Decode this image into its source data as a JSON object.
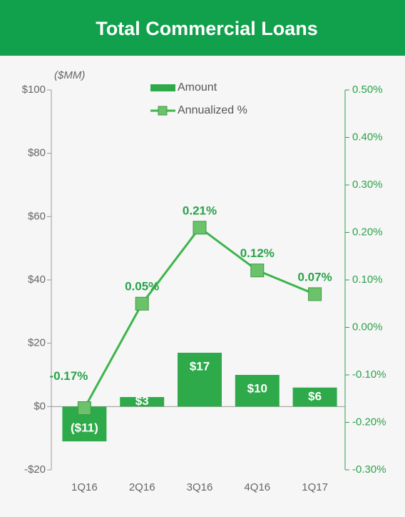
{
  "chart_data": {
    "type": "bar",
    "title": "Total Commercial Loans",
    "y_label": "($MM)",
    "categories": [
      "1Q16",
      "2Q16",
      "3Q16",
      "4Q16",
      "1Q17"
    ],
    "series": [
      {
        "name": "Amount",
        "type": "bar",
        "color": "#2eaa4a",
        "values": [
          -11,
          3,
          17,
          10,
          6
        ],
        "value_labels": [
          "($11)",
          "$3",
          "$17",
          "$10",
          "$6"
        ]
      },
      {
        "name": "Annualized %",
        "type": "line",
        "axis": "y2",
        "color": "#3cb54a",
        "values": [
          -0.17,
          0.05,
          0.21,
          0.12,
          0.07
        ],
        "value_labels": [
          "-0.17%",
          "0.05%",
          "0.21%",
          "0.12%",
          "0.07%"
        ]
      }
    ],
    "ylim": [
      -20,
      100
    ],
    "yticks": [
      {
        "value": -20,
        "label": "-$20"
      },
      {
        "value": 0,
        "label": "$0"
      },
      {
        "value": 20,
        "label": "$20"
      },
      {
        "value": 40,
        "label": "$40"
      },
      {
        "value": 60,
        "label": "$60"
      },
      {
        "value": 80,
        "label": "$80"
      },
      {
        "value": 100,
        "label": "$100"
      }
    ],
    "y2lim": [
      -0.3,
      0.5
    ],
    "y2ticks": [
      {
        "value": -0.3,
        "label": "-0.30%"
      },
      {
        "value": -0.2,
        "label": "-0.20%"
      },
      {
        "value": -0.1,
        "label": "-0.10%"
      },
      {
        "value": 0,
        "label": "0.00%"
      },
      {
        "value": 0.1,
        "label": "0.10%"
      },
      {
        "value": 0.2,
        "label": "0.20%"
      },
      {
        "value": 0.3,
        "label": "0.30%"
      },
      {
        "value": 0.4,
        "label": "0.40%"
      },
      {
        "value": 0.5,
        "label": "0.50%"
      }
    ],
    "grid": false,
    "legend": "top"
  }
}
